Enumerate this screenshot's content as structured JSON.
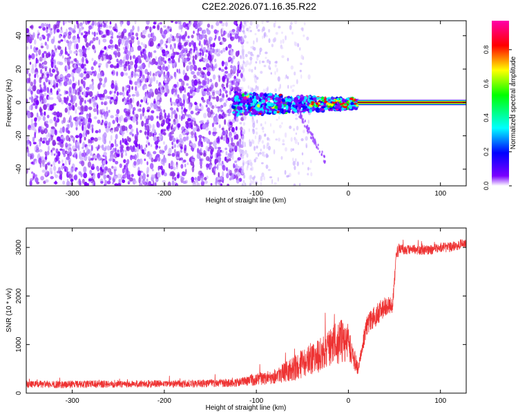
{
  "title": "C2E2.2026.071.16.35.R22",
  "chart_data": [
    {
      "type": "heatmap",
      "xlabel": "Height of straight line (km)",
      "ylabel": "Frequency (Hz)",
      "xlim": [
        -350,
        128
      ],
      "ylim": [
        -50,
        49
      ],
      "xticks": [
        -300,
        -200,
        -100,
        0,
        100
      ],
      "yticks": [
        -40,
        -20,
        0,
        20,
        40
      ],
      "colorbar": {
        "label": "Normalized spectral amplitude",
        "range": [
          0.0,
          0.97
        ],
        "ticks": [
          "0.0",
          "0.2",
          "0.4",
          "0.6",
          "0.8"
        ],
        "colors": [
          "#ffffff",
          "#7b00ff",
          "#0000ff",
          "#00ffff",
          "#00ff00",
          "#ffff00",
          "#ff0000",
          "#ff00aa"
        ]
      },
      "regions": [
        {
          "name": "noise",
          "x_range": [
            -350,
            -115
          ],
          "freq_range": [
            -50,
            49
          ],
          "amplitude": 0.1
        },
        {
          "name": "sparse-noise",
          "x_range": [
            -115,
            -40
          ],
          "freq_range": [
            -50,
            49
          ],
          "amplitude": 0.03
        },
        {
          "name": "spread-signal",
          "x_range": [
            -125,
            10
          ],
          "freq_range": [
            -8,
            6
          ],
          "amplitude": 0.4
        },
        {
          "name": "doppler-tail",
          "x_range": [
            -55,
            -25
          ],
          "freq_range": [
            -35,
            -5
          ],
          "amplitude": 0.1
        },
        {
          "name": "steady-line",
          "x_range": [
            10,
            128
          ],
          "freq_center": 0,
          "amplitude": 0.97
        }
      ]
    },
    {
      "type": "line",
      "xlabel": "Height of straight line (km)",
      "ylabel": "SNR (10 * v/v)",
      "xlim": [
        -350,
        128
      ],
      "ylim": [
        0,
        3400
      ],
      "xticks": [
        -300,
        -200,
        -100,
        0,
        100
      ],
      "yticks": [
        0,
        1000,
        2000,
        3000
      ],
      "series": [
        {
          "name": "SNR",
          "color": "#ee3333",
          "x": [
            -350,
            -300,
            -250,
            -200,
            -150,
            -120,
            -100,
            -80,
            -60,
            -40,
            -30,
            -20,
            -10,
            0,
            10,
            20,
            30,
            40,
            48,
            52,
            55,
            60,
            70,
            80,
            90,
            100,
            110,
            120,
            128
          ],
          "y": [
            180,
            180,
            190,
            190,
            200,
            220,
            280,
            350,
            500,
            700,
            800,
            950,
            1050,
            1100,
            500,
            1400,
            1600,
            1800,
            1800,
            2800,
            3000,
            2950,
            2950,
            2950,
            2950,
            3000,
            3000,
            3050,
            3100
          ],
          "noise_amplitude": [
            150,
            150,
            150,
            150,
            160,
            170,
            250,
            300,
            500,
            700,
            700,
            800,
            900,
            900,
            300,
            400,
            450,
            400,
            300,
            300,
            250,
            200,
            200,
            200,
            200,
            200,
            200,
            200,
            200
          ]
        }
      ]
    }
  ]
}
